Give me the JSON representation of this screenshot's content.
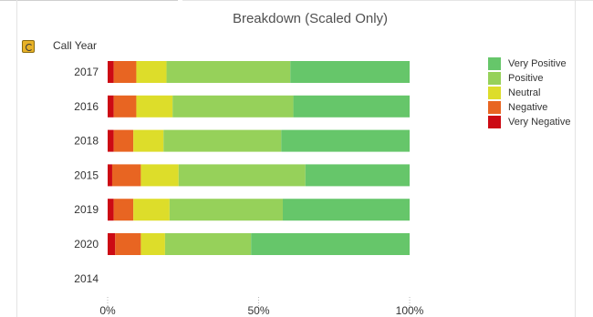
{
  "chart_data": {
    "type": "bar",
    "orientation": "horizontal",
    "stacked": true,
    "percent_scaled": true,
    "title": "Breakdown (Scaled Only)",
    "dimension_label": "Call Year",
    "categories": [
      "2017",
      "2016",
      "2018",
      "2015",
      "2019",
      "2020",
      "2014"
    ],
    "series": [
      {
        "name": "Very Negative",
        "color": "#cc0a14",
        "values": [
          2,
          2,
          2,
          1.5,
          2,
          2.5,
          0
        ]
      },
      {
        "name": "Negative",
        "color": "#e86522",
        "values": [
          7.5,
          7.5,
          6.5,
          9.5,
          6.5,
          8.5,
          0
        ]
      },
      {
        "name": "Neutral",
        "color": "#dddd2a",
        "values": [
          10,
          12,
          10,
          12.5,
          12,
          8,
          0
        ]
      },
      {
        "name": "Positive",
        "color": "#96d15a",
        "values": [
          41,
          40,
          39,
          42,
          37.5,
          28.5,
          0
        ]
      },
      {
        "name": "Very Positive",
        "color": "#66c66a",
        "values": [
          39.5,
          38.5,
          42.5,
          34.5,
          42,
          52.5,
          0
        ]
      }
    ],
    "legend_order": [
      "Very Positive",
      "Positive",
      "Neutral",
      "Negative",
      "Very Negative"
    ],
    "xlim": [
      0,
      100
    ],
    "x_ticks": [
      "0%",
      "50%",
      "100%"
    ],
    "legend_position": "right"
  }
}
